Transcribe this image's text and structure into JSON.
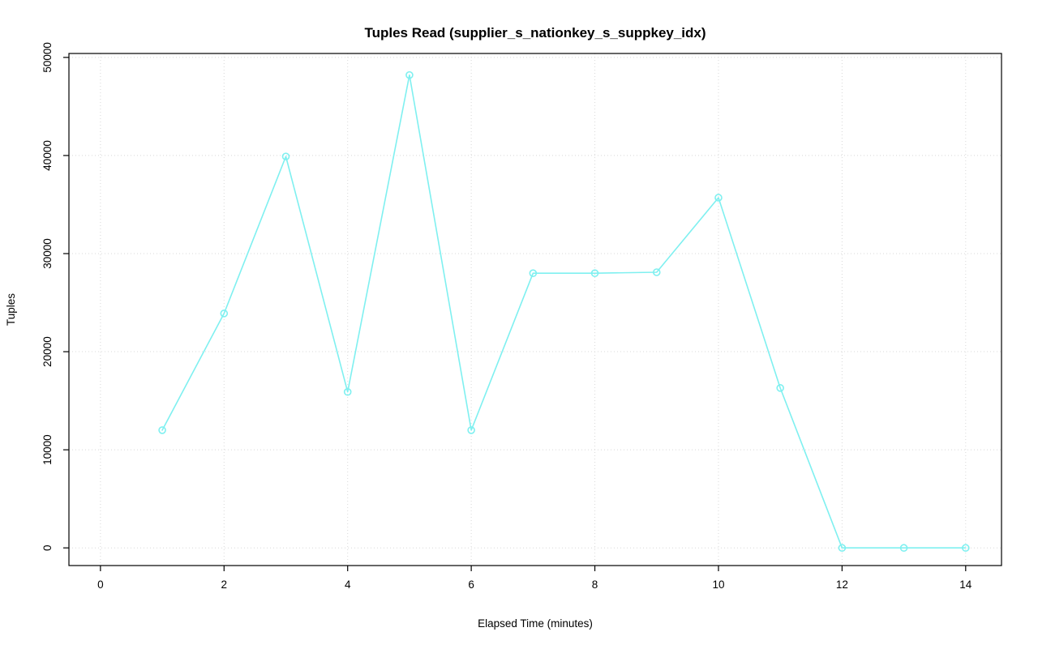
{
  "chart_data": {
    "type": "line",
    "title": "Tuples Read (supplier_s_nationkey_s_suppkey_idx)",
    "xlabel": "Elapsed Time (minutes)",
    "ylabel": "Tuples",
    "x": [
      1,
      2,
      3,
      4,
      5,
      6,
      7,
      8,
      9,
      10,
      11,
      12,
      13,
      14
    ],
    "y": [
      12000,
      23900,
      39900,
      15900,
      48200,
      12000,
      28000,
      28000,
      28100,
      35700,
      16300,
      0,
      0,
      0
    ],
    "xticks": [
      0,
      2,
      4,
      6,
      8,
      10,
      12,
      14
    ],
    "xtick_labels": [
      "0",
      "2",
      "4",
      "6",
      "8",
      "10",
      "12",
      "14"
    ],
    "yticks": [
      0,
      10000,
      20000,
      30000,
      40000,
      50000
    ],
    "ytick_labels": [
      "0",
      "10000",
      "20000",
      "30000",
      "40000",
      "50000"
    ],
    "xlim": [
      -0.51,
      14.58
    ],
    "ylim": [
      -1800,
      50400
    ],
    "grid": true,
    "legend_position": "none",
    "line_color": "#7FF0F0",
    "grid_color": "#D8D8D8",
    "box_color": "#000000",
    "marker": "open-circle"
  }
}
